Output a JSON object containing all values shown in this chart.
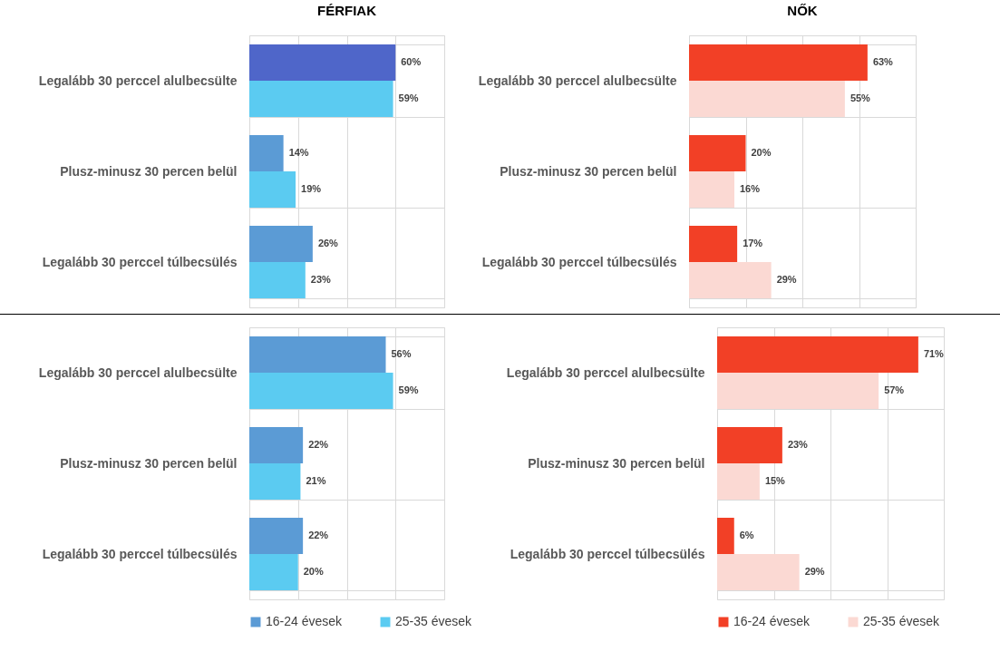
{
  "chart_data": [
    {
      "type": "bar",
      "orientation": "horizontal",
      "title": "FÉRFIAK",
      "categories": [
        "Legalább 30 perccel alulbecsülte",
        "Plusz-minusz 30 percen belül",
        "Legalább 30 perccel túlbecsülés"
      ],
      "xlim": [
        0,
        80
      ],
      "xticks": [
        0,
        20,
        40,
        60,
        80
      ],
      "tick_labels": "y",
      "grid": true,
      "series": [
        {
          "color": "#5b9bd5",
          "colors": [
            "#4f66c9",
            "#5b9bd5",
            "#5b9bd5"
          ],
          "values": [
            60,
            14,
            26
          ],
          "value_labels": [
            "60%",
            "14%",
            "26%"
          ]
        },
        {
          "color": "#5bcbf1",
          "values": [
            59,
            19,
            23
          ],
          "value_labels": [
            "59%",
            "19%",
            "23%"
          ]
        }
      ]
    },
    {
      "type": "bar",
      "orientation": "horizontal",
      "title": "NŐK",
      "categories": [
        "Legalább 30 perccel alulbecsülte",
        "Plusz-minusz 30 percen belül",
        "Legalább 30 perccel túlbecsülés"
      ],
      "xlim": [
        0,
        80
      ],
      "xticks": [
        0,
        20,
        40,
        60,
        80
      ],
      "tick_labels": "y",
      "grid": true,
      "series": [
        {
          "color": "#f24026",
          "values": [
            63,
            20,
            17
          ],
          "value_labels": [
            "63%",
            "20%",
            "17%"
          ]
        },
        {
          "color": "#fbd9d3",
          "values": [
            55,
            16,
            29
          ],
          "value_labels": [
            "55%",
            "16%",
            "29%"
          ]
        }
      ]
    },
    {
      "type": "bar",
      "orientation": "horizontal",
      "categories": [
        "Legalább 30 perccel alulbecsülte",
        "Plusz-minusz 30 percen belül",
        "Legalább 30 perccel túlbecsülés"
      ],
      "xlim": [
        0,
        80
      ],
      "xticks": [
        0,
        20,
        40,
        60,
        80
      ],
      "tick_labels": "y",
      "grid": true,
      "legend": "bottom",
      "series": [
        {
          "name": "16-24 évesek",
          "color": "#5b9bd5",
          "values": [
            56,
            22,
            22
          ],
          "value_labels": [
            "56%",
            "22%",
            "22%"
          ]
        },
        {
          "name": "25-35 évesek",
          "color": "#5bcbf1",
          "values": [
            59,
            21,
            20
          ],
          "value_labels": [
            "59%",
            "21%",
            "20%"
          ]
        }
      ]
    },
    {
      "type": "bar",
      "orientation": "horizontal",
      "categories": [
        "Legalább 30 perccel alulbecsülte",
        "Plusz-minusz 30 percen belül",
        "Legalább 30 perccel túlbecsülés"
      ],
      "xlim": [
        0,
        80
      ],
      "xticks": [
        0,
        20,
        40,
        60,
        80
      ],
      "tick_labels": "y",
      "grid": true,
      "legend": "bottom",
      "series": [
        {
          "name": "16-24 évesek",
          "color": "#f24026",
          "values": [
            71,
            23,
            6
          ],
          "value_labels": [
            "71%",
            "23%",
            "6%"
          ]
        },
        {
          "name": "25-35 évesek",
          "color": "#fbd9d3",
          "values": [
            57,
            15,
            29
          ],
          "value_labels": [
            "57%",
            "15%",
            "29%"
          ]
        }
      ]
    }
  ]
}
